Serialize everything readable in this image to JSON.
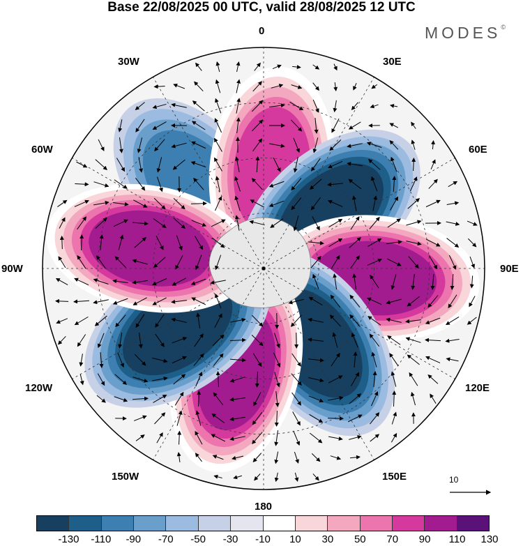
{
  "title": "Base 22/08/2025 00 UTC, valid 28/08/2025 12 UTC",
  "brand": "MODES",
  "brand_mark": "©",
  "longitude_labels": {
    "lon_0": "0",
    "lon_30e": "30E",
    "lon_60e": "60E",
    "lon_90e": "90E",
    "lon_120e": "120E",
    "lon_150e": "150E",
    "lon_180": "180",
    "lon_150w": "150W",
    "lon_120w": "120W",
    "lon_90w": "90W",
    "lon_60w": "60W",
    "lon_30w": "30W"
  },
  "reference_vector": "10",
  "colorbar": {
    "ticks": [
      "-130",
      "-110",
      "-90",
      "-70",
      "-50",
      "-30",
      "-10",
      "10",
      "30",
      "50",
      "70",
      "90",
      "110",
      "130"
    ],
    "colors": [
      "#173f5f",
      "#1e5f8a",
      "#3d7fb0",
      "#6a9fcc",
      "#9bbbe0",
      "#c6d0e6",
      "#e5e5f0",
      "#ffffff",
      "#f8d6da",
      "#f3a8c0",
      "#ec75ae",
      "#d6399d",
      "#a21b8f",
      "#5b1278"
    ]
  },
  "chart_data": {
    "type": "heatmap",
    "projection": "south polar stereographic",
    "field": "anomaly with wind vectors",
    "levels": [
      -130,
      -110,
      -90,
      -70,
      -50,
      -30,
      -10,
      10,
      30,
      50,
      70,
      90,
      110,
      130
    ],
    "centers": [
      {
        "lon": -40,
        "lat_from_pole": 30,
        "value": -85
      },
      {
        "lon": 5,
        "lat_from_pole": 28,
        "value": 100
      },
      {
        "lon": 50,
        "lat_from_pole": 25,
        "value": -115
      },
      {
        "lon": 95,
        "lat_from_pole": 32,
        "value": 115
      },
      {
        "lon": 145,
        "lat_from_pole": 26,
        "value": -120
      },
      {
        "lon": -165,
        "lat_from_pole": 30,
        "value": 125
      },
      {
        "lon": -125,
        "lat_from_pole": 30,
        "value": -125
      },
      {
        "lon": -80,
        "lat_from_pole": 33,
        "value": 115
      }
    ]
  }
}
